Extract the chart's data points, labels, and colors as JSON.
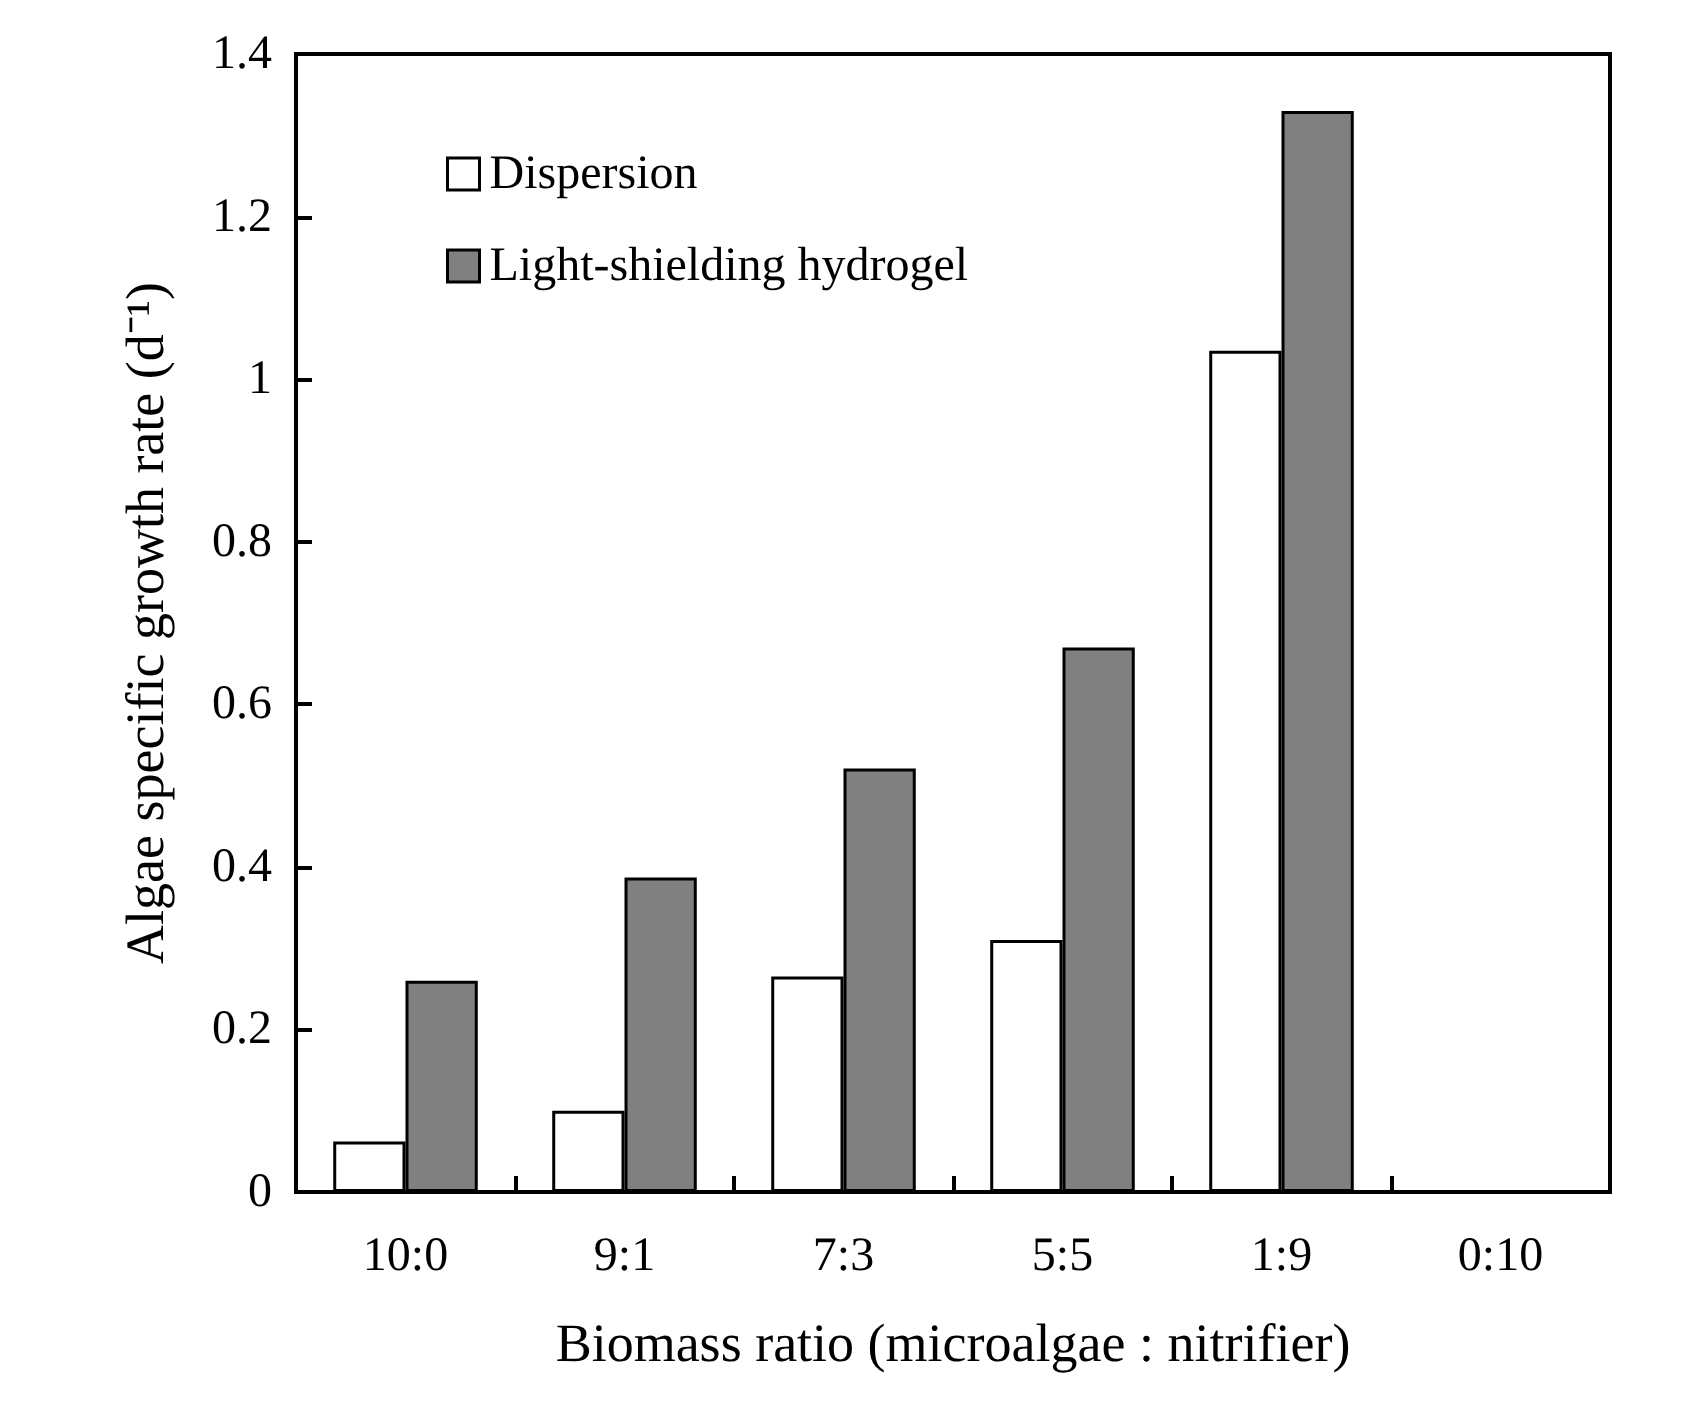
{
  "chart_data": {
    "type": "bar",
    "xlabel": "Biomass ratio (microalgae : nitrifier)",
    "ylabel": "Algae specific growth rate (d⁻¹)",
    "categories": [
      "10:0",
      "9:1",
      "7:3",
      "5:5",
      "1:9",
      "0:10"
    ],
    "series": [
      {
        "name": "Dispersion",
        "color": "#ffffff",
        "values": [
          0.062,
          0.1,
          0.265,
          0.31,
          1.035,
          null
        ]
      },
      {
        "name": "Light-shielding hydrogel",
        "color": "#808080",
        "values": [
          0.26,
          0.387,
          0.521,
          0.67,
          1.33,
          null
        ]
      }
    ],
    "ylim": [
      0,
      1.4
    ],
    "yticks": [
      0,
      0.2,
      0.4,
      0.6,
      0.8,
      1,
      1.2,
      1.4
    ],
    "grid": false,
    "legend": "top left"
  }
}
